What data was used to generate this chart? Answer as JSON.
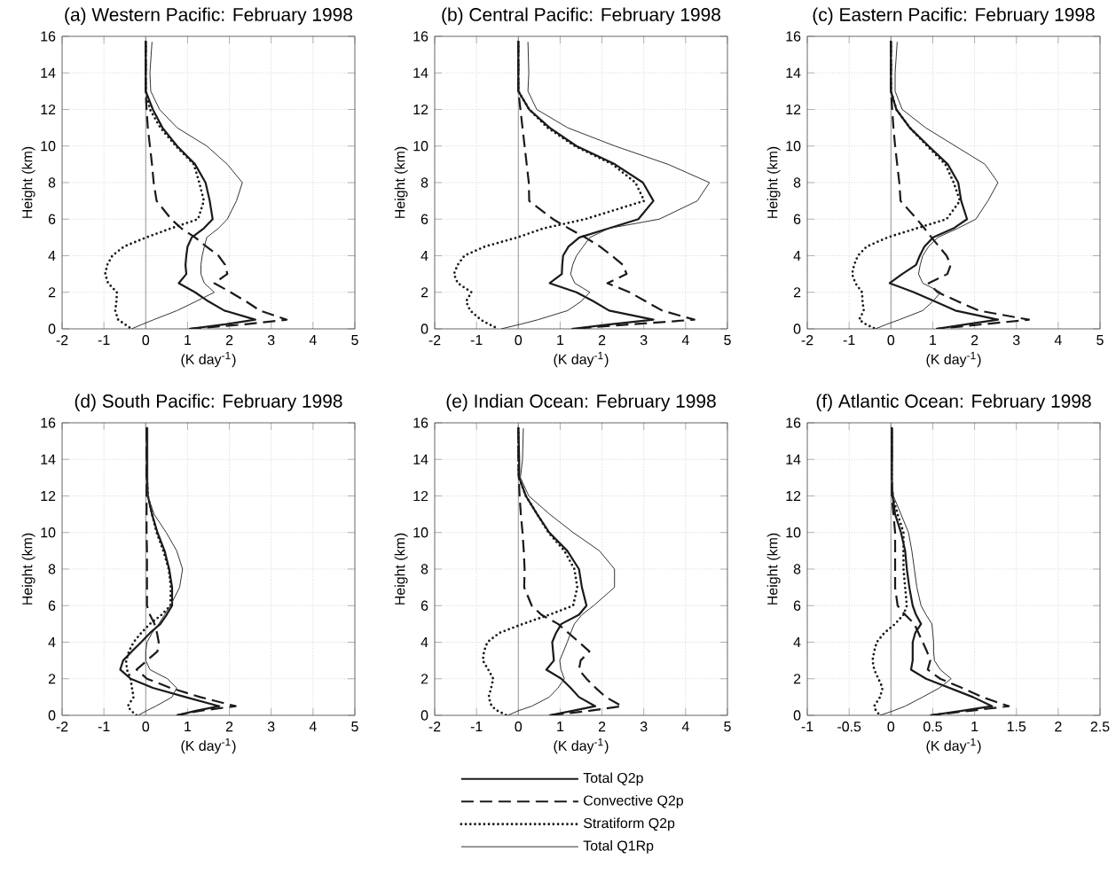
{
  "chart_data": [
    {
      "type": "line",
      "title": "(a) Western Pacific: February 1998",
      "xlabel": "(K day$^{-1}$)",
      "ylabel": "Height (km)",
      "xlim": [
        -2,
        5
      ],
      "ylim": [
        0,
        16
      ],
      "xticks": [
        -2,
        -1,
        0,
        1,
        2,
        3,
        4,
        5
      ],
      "yticks": [
        0,
        2,
        4,
        6,
        8,
        10,
        12,
        14,
        16
      ],
      "grid": true,
      "legend": false,
      "ref_lines": [
        {
          "axis": "x",
          "value": 0,
          "color": "#808080"
        }
      ],
      "series": [
        {
          "color": "#1a1a1a",
          "line_style": "solid",
          "x": [
            0,
            0,
            0.17,
            0.4,
            0.75,
            1.18,
            1.43,
            1.53,
            1.6,
            1.39,
            1.1,
            1.0,
            0.97,
            0.95,
            0.97,
            0.79,
            1.18,
            1.5,
            1.88,
            2.62,
            1.9,
            1.04
          ],
          "values": [
            15.7,
            13,
            12,
            11,
            10,
            9,
            8,
            7,
            6,
            5.5,
            5,
            4.5,
            4,
            3.5,
            3,
            2.5,
            2,
            1.5,
            1,
            0.5,
            0.25,
            0
          ]
        },
        {
          "color": "#1a1a1a",
          "line_style": "dashed",
          "x": [
            0,
            0,
            0.02,
            0.05,
            0.1,
            0.15,
            0.19,
            0.26,
            0.61,
            0.85,
            1.18,
            1.45,
            1.74,
            1.9,
            1.95,
            1.64,
            2.03,
            2.4,
            2.73,
            3.37,
            2.38,
            1.04
          ],
          "values": [
            15.7,
            13,
            12,
            11,
            10,
            9,
            8,
            7,
            6,
            5.5,
            5,
            4.5,
            4,
            3.5,
            3,
            2.5,
            2,
            1.5,
            1,
            0.5,
            0.25,
            0
          ]
        },
        {
          "color": "#1a1a1a",
          "line_style": "dotted",
          "x": [
            0,
            0,
            0.1,
            0.35,
            0.72,
            1.15,
            1.28,
            1.39,
            1.25,
            0.61,
            0.01,
            -0.52,
            -0.8,
            -0.92,
            -0.97,
            -0.9,
            -0.69,
            -0.7,
            -0.73,
            -0.66,
            -0.5,
            -0.34
          ],
          "values": [
            15.7,
            13,
            12,
            11,
            10,
            9,
            8,
            7,
            6,
            5.5,
            5,
            4.5,
            4,
            3.5,
            3,
            2.5,
            2,
            1.5,
            1,
            0.5,
            0.25,
            0
          ]
        },
        {
          "color": "#333333",
          "line_style": "solid",
          "x": [
            0.15,
            0.1,
            0.12,
            0.33,
            0.75,
            1.46,
            1.95,
            2.31,
            2.17,
            1.95,
            1.74,
            1.46,
            1.4,
            1.35,
            1.32,
            1.32,
            1.4,
            1.64,
            1.2,
            0.75,
            0.19,
            -0.08,
            -0.34
          ],
          "values": [
            15.7,
            14,
            13,
            12,
            11,
            10,
            9,
            8,
            7,
            6,
            5.5,
            5,
            4.5,
            4,
            3.5,
            3,
            2.5,
            2,
            1.5,
            1,
            0.5,
            0.25,
            0
          ]
        }
      ]
    },
    {
      "type": "line",
      "title": "(b) Central Pacific: February 1998",
      "xlabel": "(K day$^{-1}$)",
      "ylabel": "Height (km)",
      "xlim": [
        -2,
        5
      ],
      "ylim": [
        0,
        16
      ],
      "xticks": [
        -2,
        -1,
        0,
        1,
        2,
        3,
        4,
        5
      ],
      "yticks": [
        0,
        2,
        4,
        6,
        8,
        10,
        12,
        14,
        16
      ],
      "grid": true,
      "legend": false,
      "ref_lines": [
        {
          "axis": "x",
          "value": 0,
          "color": "#808080"
        }
      ],
      "series": [
        {
          "color": "#1a1a1a",
          "line_style": "solid",
          "x": [
            0,
            0,
            0.26,
            0.75,
            1.39,
            2.31,
            2.98,
            3.23,
            2.87,
            2.17,
            1.46,
            1.2,
            1.07,
            1.05,
            1.04,
            0.75,
            1.39,
            1.8,
            2.17,
            3.23,
            2.2,
            1.28
          ],
          "values": [
            15.7,
            13,
            12,
            11,
            10,
            9,
            8,
            7,
            6,
            5.5,
            5,
            4.5,
            4,
            3.5,
            3,
            2.5,
            2,
            1.5,
            1,
            0.5,
            0.25,
            0
          ]
        },
        {
          "color": "#1a1a1a",
          "line_style": "dashed",
          "x": [
            0,
            0,
            0.05,
            0.1,
            0.15,
            0.2,
            0.25,
            0.26,
            0.83,
            1.2,
            1.6,
            1.95,
            2.24,
            2.5,
            2.59,
            2.13,
            2.66,
            3.05,
            3.44,
            4.21,
            2.7,
            1.28
          ],
          "values": [
            15.7,
            13,
            12,
            11,
            10,
            9,
            8,
            7,
            6,
            5.5,
            5,
            4.5,
            4,
            3.5,
            3,
            2.5,
            2,
            1.5,
            1,
            0.5,
            0.25,
            0
          ]
        },
        {
          "color": "#1a1a1a",
          "line_style": "dotted",
          "x": [
            0,
            0,
            0.26,
            0.7,
            1.35,
            2.25,
            2.8,
            3.01,
            1.6,
            0.61,
            -0.02,
            -0.8,
            -1.29,
            -1.45,
            -1.54,
            -1.45,
            -1.12,
            -1.25,
            -1.15,
            -0.9,
            -0.7,
            -0.48
          ],
          "values": [
            15.7,
            13,
            12,
            11,
            10,
            9,
            8,
            7,
            6,
            5.5,
            5,
            4.5,
            4,
            3.5,
            3,
            2.5,
            2,
            1.5,
            1,
            0.5,
            0.25,
            0
          ]
        },
        {
          "color": "#333333",
          "line_style": "solid",
          "x": [
            0.23,
            0.25,
            0.23,
            0.44,
            1.18,
            2.31,
            3.58,
            4.57,
            4.28,
            3.37,
            2.17,
            1.71,
            1.55,
            1.39,
            1.3,
            1.25,
            1.35,
            1.71,
            1.5,
            1.18,
            0.47,
            0.05,
            -0.41
          ],
          "values": [
            15.7,
            14,
            13,
            12,
            11,
            10,
            9,
            8,
            7,
            6,
            5.5,
            5,
            4.5,
            4,
            3.5,
            3,
            2.5,
            2,
            1.5,
            1,
            0.5,
            0.25,
            0
          ]
        }
      ]
    },
    {
      "type": "line",
      "title": "(c) Eastern Pacific: February 1998",
      "xlabel": "(K day$^{-1}$)",
      "ylabel": "Height (km)",
      "xlim": [
        -2,
        5
      ],
      "ylim": [
        0,
        16
      ],
      "xticks": [
        -2,
        -1,
        0,
        1,
        2,
        3,
        4,
        5
      ],
      "yticks": [
        0,
        2,
        4,
        6,
        8,
        10,
        12,
        14,
        16
      ],
      "grid": true,
      "legend": false,
      "ref_lines": [
        {
          "axis": "x",
          "value": 0,
          "color": "#808080"
        }
      ],
      "series": [
        {
          "color": "#1a1a1a",
          "line_style": "solid",
          "x": [
            0,
            0,
            0.13,
            0.45,
            0.9,
            1.36,
            1.61,
            1.68,
            1.82,
            1.5,
            1.01,
            0.8,
            0.69,
            0.6,
            0.27,
            -0.03,
            0.55,
            1.05,
            1.54,
            2.56,
            1.8,
            1.08
          ],
          "values": [
            15.7,
            13,
            12,
            11,
            10,
            9,
            8,
            7,
            6,
            5.5,
            5,
            4.5,
            4,
            3.5,
            3,
            2.5,
            2,
            1.5,
            1,
            0.5,
            0.25,
            0
          ]
        },
        {
          "color": "#1a1a1a",
          "line_style": "dashed",
          "x": [
            0,
            0,
            0.03,
            0.06,
            0.1,
            0.15,
            0.2,
            0.23,
            0.62,
            0.8,
            0.97,
            1.15,
            1.33,
            1.43,
            1.35,
            0.9,
            1.12,
            1.6,
            2.1,
            3.3,
            2.2,
            1.08
          ],
          "values": [
            15.7,
            13,
            12,
            11,
            10,
            9,
            8,
            7,
            6,
            5.5,
            5,
            4.5,
            4,
            3.5,
            3,
            2.5,
            2,
            1.5,
            1,
            0.5,
            0.25,
            0
          ]
        },
        {
          "color": "#1a1a1a",
          "line_style": "dotted",
          "x": [
            0,
            0,
            0.13,
            0.45,
            0.87,
            1.3,
            1.5,
            1.65,
            1.33,
            0.62,
            -0.08,
            -0.58,
            -0.79,
            -0.88,
            -0.93,
            -0.85,
            -0.69,
            -0.68,
            -0.65,
            -0.76,
            -0.6,
            -0.37
          ],
          "values": [
            15.7,
            13,
            12,
            11,
            10,
            9,
            8,
            7,
            6,
            5.5,
            5,
            4.5,
            4,
            3.5,
            3,
            2.5,
            2,
            1.5,
            1,
            0.5,
            0.25,
            0
          ]
        },
        {
          "color": "#333333",
          "line_style": "solid",
          "x": [
            0.15,
            0.1,
            0.1,
            0.27,
            0.83,
            1.54,
            2.25,
            2.56,
            2.32,
            2.03,
            1.6,
            1.12,
            0.9,
            0.76,
            0.7,
            0.66,
            0.76,
            1.19,
            1.0,
            0.76,
            0.2,
            -0.1,
            -0.37
          ],
          "values": [
            15.7,
            14,
            13,
            12,
            11,
            10,
            9,
            8,
            7,
            6,
            5.5,
            5,
            4.5,
            4,
            3.5,
            3,
            2.5,
            2,
            1.5,
            1,
            0.5,
            0.25,
            0
          ]
        }
      ]
    },
    {
      "type": "line",
      "title": "(d) South Pacific: February 1998",
      "xlabel": "(K day$^{-1}$)",
      "ylabel": "Height (km)",
      "xlim": [
        -2,
        5
      ],
      "ylim": [
        0,
        16
      ],
      "xticks": [
        -2,
        -1,
        0,
        1,
        2,
        3,
        4,
        5
      ],
      "yticks": [
        0,
        2,
        4,
        6,
        8,
        10,
        12,
        14,
        16
      ],
      "grid": true,
      "legend": false,
      "ref_lines": [
        {
          "axis": "x",
          "value": 0,
          "color": "#808080"
        }
      ],
      "series": [
        {
          "color": "#1a1a1a",
          "line_style": "solid",
          "x": [
            0.03,
            0.03,
            0.05,
            0.15,
            0.28,
            0.45,
            0.56,
            0.63,
            0.63,
            0.5,
            0.35,
            0.1,
            -0.11,
            -0.33,
            -0.54,
            -0.61,
            -0.36,
            0.17,
            0.95,
            1.76,
            1.2,
            0.74
          ],
          "values": [
            15.7,
            13,
            12,
            11,
            10,
            9,
            8,
            7,
            6,
            5.5,
            5,
            4.5,
            4,
            3.5,
            3,
            2.5,
            2,
            1.5,
            1,
            0.5,
            0.25,
            0
          ]
        },
        {
          "color": "#1a1a1a",
          "line_style": "dashed",
          "x": [
            0.02,
            0.02,
            0.03,
            0.03,
            0.1,
            0.21,
            0.27,
            0.31,
            0.28,
            0.03,
            -0.22,
            0.03,
            0.59,
            1.3,
            2.15,
            1.3,
            0.74
          ],
          "values": [
            15.7,
            10,
            9,
            6,
            5.5,
            5,
            4.5,
            4,
            3.5,
            3,
            2.5,
            2,
            1.5,
            1,
            0.5,
            0.25,
            0
          ]
        },
        {
          "color": "#1a1a1a",
          "line_style": "dotted",
          "x": [
            0.03,
            0.03,
            0.05,
            0.15,
            0.26,
            0.42,
            0.55,
            0.6,
            0.59,
            0.38,
            0.1,
            -0.11,
            -0.29,
            -0.4,
            -0.47,
            -0.45,
            -0.36,
            -0.33,
            -0.29,
            -0.43,
            -0.35,
            -0.22
          ],
          "values": [
            15.7,
            13,
            12,
            11,
            10,
            9,
            8,
            7,
            6,
            5.5,
            5,
            4.5,
            4,
            3.5,
            3,
            2.5,
            2,
            1.5,
            1,
            0.5,
            0.25,
            0
          ]
        },
        {
          "color": "#333333",
          "line_style": "solid",
          "x": [
            0.05,
            0.05,
            0.2,
            0.49,
            0.74,
            0.88,
            0.81,
            0.59,
            0.45,
            0.31,
            0.15,
            0.03,
            0.0,
            0.0,
            0.1,
            0.52,
            0.74,
            0.63,
            0.24,
            0.02,
            -0.18
          ],
          "values": [
            15.7,
            12,
            11,
            10,
            9,
            8,
            7,
            6,
            5.5,
            5,
            4.5,
            4,
            3.5,
            3,
            2.5,
            2,
            1.5,
            1,
            0.5,
            0.25,
            0
          ]
        }
      ]
    },
    {
      "type": "line",
      "title": "(e) Indian Ocean: February 1998",
      "xlabel": "(K day$^{-1}$)",
      "ylabel": "Height (km)",
      "xlim": [
        -2,
        5
      ],
      "ylim": [
        0,
        16
      ],
      "xticks": [
        -2,
        -1,
        0,
        1,
        2,
        3,
        4,
        5
      ],
      "yticks": [
        0,
        2,
        4,
        6,
        8,
        10,
        12,
        14,
        16
      ],
      "grid": true,
      "legend": "bottom",
      "ref_lines": [
        {
          "axis": "x",
          "value": 0,
          "color": "#808080"
        }
      ],
      "series": [
        {
          "name": "Total Q2p",
          "color": "#1a1a1a",
          "line_style": "solid",
          "x": [
            0,
            0.02,
            0.02,
            0.18,
            0.45,
            0.74,
            1.17,
            1.45,
            1.52,
            1.63,
            1.45,
            1.03,
            0.9,
            0.81,
            0.83,
            0.85,
            0.67,
            1.03,
            1.25,
            1.45,
            1.84,
            1.3,
            0.74
          ],
          "values": [
            15.7,
            14,
            13,
            12,
            11,
            10,
            9,
            8,
            7,
            6,
            5.5,
            5,
            4.5,
            4,
            3.5,
            3,
            2.5,
            2,
            1.5,
            1,
            0.5,
            0.25,
            0
          ]
        },
        {
          "name": "Convective Q2p",
          "color": "#1a1a1a",
          "line_style": "dashed",
          "x": [
            0,
            0,
            0.01,
            0.03,
            0.06,
            0.1,
            0.13,
            0.15,
            0.14,
            0.32,
            0.55,
            0.95,
            1.2,
            1.45,
            1.7,
            1.49,
            1.45,
            1.63,
            1.85,
            2.09,
            2.48,
            1.7,
            0.74
          ],
          "values": [
            15.7,
            14,
            13,
            12,
            11,
            10,
            9,
            8,
            7,
            6,
            5.5,
            5,
            4.5,
            4,
            3.5,
            3,
            2.5,
            2,
            1.5,
            1,
            0.5,
            0.25,
            0
          ]
        },
        {
          "name": "Stratiform Q2p",
          "color": "#1a1a1a",
          "line_style": "dotted",
          "x": [
            0,
            0,
            0.01,
            0.18,
            0.45,
            0.72,
            1.1,
            1.34,
            1.41,
            1.31,
            0.74,
            0.11,
            -0.46,
            -0.74,
            -0.82,
            -0.85,
            -0.72,
            -0.6,
            -0.65,
            -0.71,
            -0.64,
            -0.5,
            -0.28
          ],
          "values": [
            15.7,
            14,
            13,
            12,
            11,
            10,
            9,
            8,
            7,
            6,
            5.5,
            5,
            4.5,
            4,
            3.5,
            3,
            2.5,
            2,
            1.5,
            1,
            0.5,
            0.25,
            0
          ]
        },
        {
          "name": "Total Q1Rp",
          "color": "#333333",
          "line_style": "solid",
          "x": [
            0.12,
            0.1,
            0.05,
            0.25,
            0.75,
            1.31,
            1.94,
            2.3,
            2.3,
            1.8,
            1.52,
            1.34,
            1.25,
            1.17,
            1.08,
            0.99,
            1.02,
            1.1,
            0.95,
            0.74,
            0.32,
            0.0,
            -0.25
          ],
          "values": [
            15.7,
            14,
            13,
            12,
            11,
            10,
            9,
            8,
            7,
            6,
            5.5,
            5,
            4.5,
            4,
            3.5,
            3,
            2.5,
            2,
            1.5,
            1,
            0.5,
            0.25,
            0
          ]
        }
      ]
    },
    {
      "type": "line",
      "title": "(f) Atlantic Ocean: February 1998",
      "xlabel": "(K day$^{-1}$)",
      "ylabel": "Height (km)",
      "xlim": [
        -1,
        2.5
      ],
      "ylim": [
        0,
        16
      ],
      "xticks": [
        -1,
        -0.5,
        0,
        0.5,
        1,
        1.5,
        2,
        2.5
      ],
      "yticks": [
        0,
        2,
        4,
        6,
        8,
        10,
        12,
        14,
        16
      ],
      "grid": true,
      "legend": false,
      "ref_lines": [
        {
          "axis": "x",
          "value": 0,
          "color": "#808080"
        }
      ],
      "series": [
        {
          "color": "#1a1a1a",
          "line_style": "solid",
          "x": [
            0.01,
            0.01,
            0.02,
            0.05,
            0.12,
            0.17,
            0.19,
            0.22,
            0.26,
            0.3,
            0.36,
            0.29,
            0.26,
            0.26,
            0.24,
            0.42,
            0.7,
            0.98,
            1.21,
            0.85,
            0.47
          ],
          "values": [
            15.7,
            13,
            12,
            11,
            10,
            9,
            8,
            7,
            6,
            5.5,
            5,
            4.5,
            4,
            3,
            2.5,
            2,
            1.5,
            1,
            0.5,
            0.25,
            0
          ]
        },
        {
          "color": "#1a1a1a",
          "line_style": "dashed",
          "x": [
            0.01,
            0.01,
            0.03,
            0.05,
            0.05,
            0.08,
            0.17,
            0.28,
            0.33,
            0.38,
            0.43,
            0.47,
            0.44,
            0.59,
            0.85,
            1.09,
            1.41,
            0.95,
            0.47
          ],
          "values": [
            15.7,
            12,
            11,
            10,
            7,
            6,
            5.5,
            5,
            4.5,
            4,
            3.5,
            3,
            2.5,
            2,
            1.5,
            1,
            0.5,
            0.25,
            0
          ]
        },
        {
          "color": "#1a1a1a",
          "line_style": "dotted",
          "x": [
            0.01,
            0.01,
            0.02,
            0.08,
            0.15,
            0.15,
            0.17,
            0.19,
            0.15,
            0.05,
            -0.08,
            -0.17,
            -0.2,
            -0.22,
            -0.2,
            -0.15,
            -0.1,
            -0.13,
            -0.2,
            -0.18,
            -0.13
          ],
          "values": [
            15.7,
            13,
            12,
            11,
            10,
            8,
            7,
            6,
            5.5,
            5,
            4.5,
            4,
            3.5,
            3,
            2.5,
            2,
            1.5,
            1,
            0.5,
            0.25,
            0
          ]
        },
        {
          "color": "#333333",
          "line_style": "solid",
          "x": [
            0.02,
            0.02,
            0.01,
            0.03,
            0.12,
            0.21,
            0.25,
            0.28,
            0.31,
            0.36,
            0.42,
            0.49,
            0.5,
            0.51,
            0.51,
            0.52,
            0.59,
            0.72,
            0.58,
            0.38,
            0.17,
            0.03,
            -0.13
          ],
          "values": [
            15.7,
            14,
            13,
            12,
            11,
            10,
            9,
            8,
            7,
            6,
            5.5,
            5,
            4.5,
            4,
            3.5,
            3,
            2.5,
            2,
            1.5,
            1,
            0.5,
            0.25,
            0
          ]
        }
      ]
    }
  ]
}
